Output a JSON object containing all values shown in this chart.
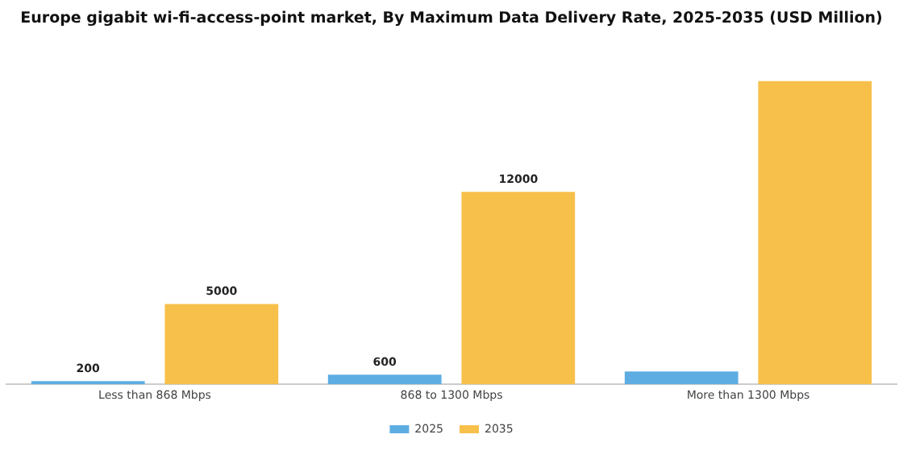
{
  "chart_data": {
    "type": "bar",
    "title": "Europe gigabit wi-fi-access-point market, By Maximum Data Delivery Rate, 2025-2035 (USD Million)",
    "categories": [
      "Less than 868 Mbps",
      "868 to 1300 Mbps",
      "More than 1300 Mbps"
    ],
    "series": [
      {
        "name": "2025",
        "color": "#5dade2",
        "values": [
          200,
          600,
          800
        ],
        "value_labels": [
          "200",
          "600",
          null
        ]
      },
      {
        "name": "2035",
        "color": "#f7c04a",
        "values": [
          5000,
          12000,
          18900
        ],
        "value_labels": [
          "5000",
          "12000",
          null
        ]
      }
    ],
    "legend": "bottom",
    "grid": false
  }
}
